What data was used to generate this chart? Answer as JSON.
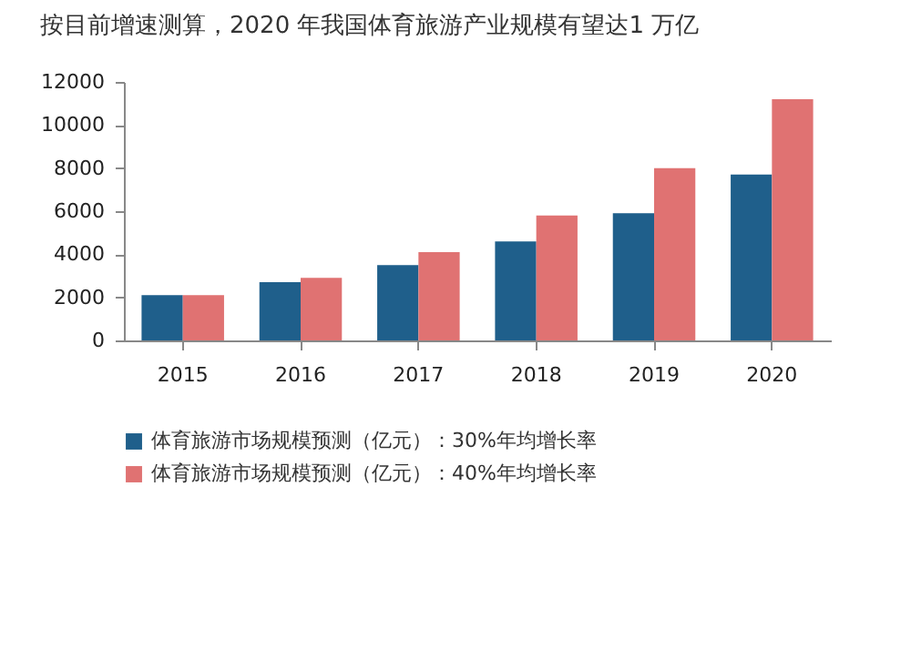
{
  "chart_data": {
    "type": "bar",
    "title": "按目前增速测算，2020 年我国体育旅游产业规模有望达1 万亿",
    "categories": [
      "2015",
      "2016",
      "2017",
      "2018",
      "2019",
      "2020"
    ],
    "series": [
      {
        "name": "体育旅游市场规模预测（亿元）：30%年均增长率",
        "color": "#1f5f8b",
        "values": [
          2100,
          2700,
          3500,
          4600,
          5900,
          7700
        ]
      },
      {
        "name": "体育旅游市场规模预测（亿元）：40%年均增长率",
        "color": "#e07272",
        "values": [
          2100,
          2900,
          4100,
          5800,
          8000,
          11200
        ]
      }
    ],
    "ylim": [
      0,
      12000
    ],
    "yticks": [
      0,
      2000,
      4000,
      6000,
      8000,
      10000,
      12000
    ],
    "grid": false,
    "legend": "bottom"
  }
}
